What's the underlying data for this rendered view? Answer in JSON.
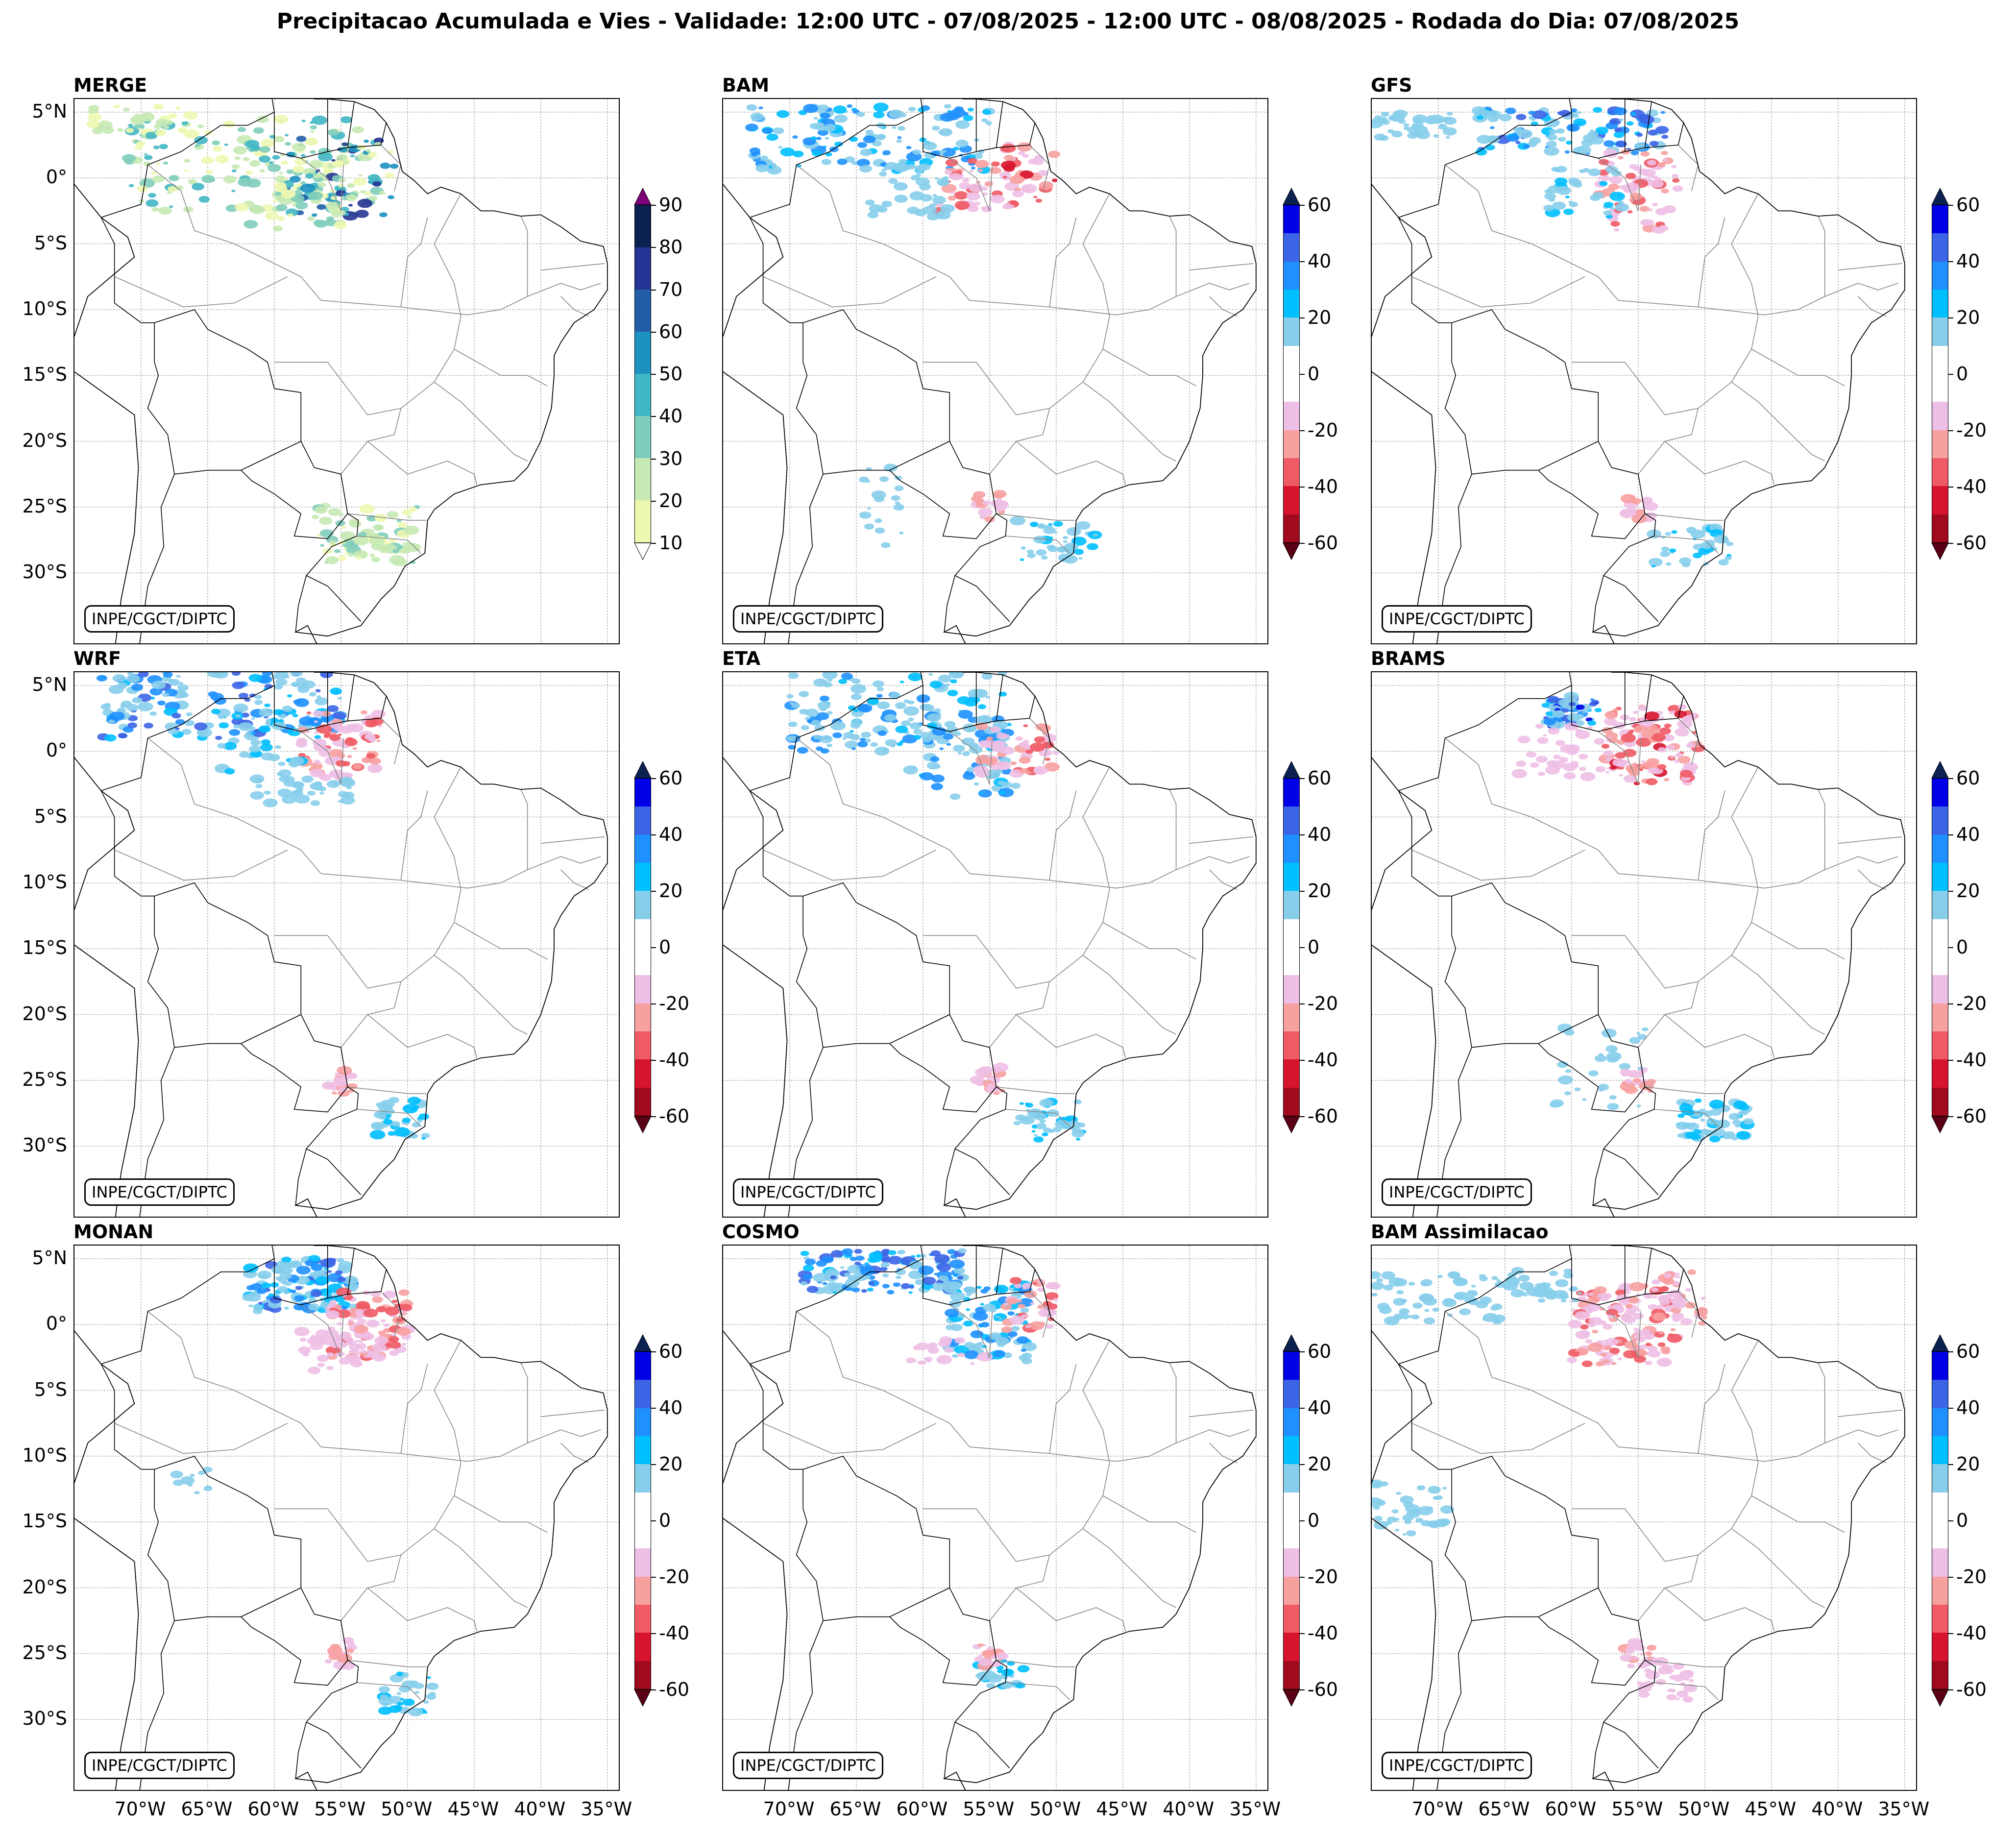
{
  "title": "Precipitacao Acumulada e Vies - Validade: 12:00 UTC - 07/08/2025 - 12:00 UTC - 08/08/2025 - Rodada do Dia: 07/08/2025",
  "credit": "INPE/CGCT/DIPTC",
  "lat_ticks": [
    "5°N",
    "0°",
    "5°S",
    "10°S",
    "15°S",
    "20°S",
    "25°S",
    "30°S"
  ],
  "lon_ticks": [
    "70°W",
    "65°W",
    "60°W",
    "55°W",
    "50°W",
    "45°W",
    "40°W",
    "35°W"
  ],
  "panels": [
    {
      "name": "MERGE",
      "type": "precip"
    },
    {
      "name": "BAM",
      "type": "bias"
    },
    {
      "name": "GFS",
      "type": "bias"
    },
    {
      "name": "WRF",
      "type": "bias"
    },
    {
      "name": "ETA",
      "type": "bias"
    },
    {
      "name": "BRAMS",
      "type": "bias"
    },
    {
      "name": "MONAN",
      "type": "bias"
    },
    {
      "name": "COSMO",
      "type": "bias"
    },
    {
      "name": "BAM Assimilacao",
      "type": "bias"
    }
  ],
  "colorbars": {
    "precip": {
      "ticks": [
        "90",
        "80",
        "70",
        "60",
        "50",
        "40",
        "30",
        "20",
        "10"
      ],
      "colors": [
        "#0b2152",
        "#253494",
        "#225ea8",
        "#1d91c0",
        "#41b6c4",
        "#7fcdbb",
        "#c7e9b4",
        "#edf8b1"
      ],
      "over_color": "#7a0177",
      "under_color": "#ffffff"
    },
    "bias": {
      "ticks": [
        "60",
        "40",
        "20",
        "0",
        "-20",
        "-40",
        "-60"
      ],
      "colors": [
        "#0000e6",
        "#3c64e6",
        "#1e90ff",
        "#00bfff",
        "#87ceeb",
        "#ffffff",
        "#ffffff",
        "#eebfe6",
        "#f7a0a0",
        "#ef5a64",
        "#d7142d",
        "#a00a1e"
      ],
      "over_color": "#0b2152",
      "under_color": "#5a0014"
    }
  },
  "colors": {
    "coast": "#000000",
    "states": "#888888",
    "grid": "#aaaaaa"
  }
}
